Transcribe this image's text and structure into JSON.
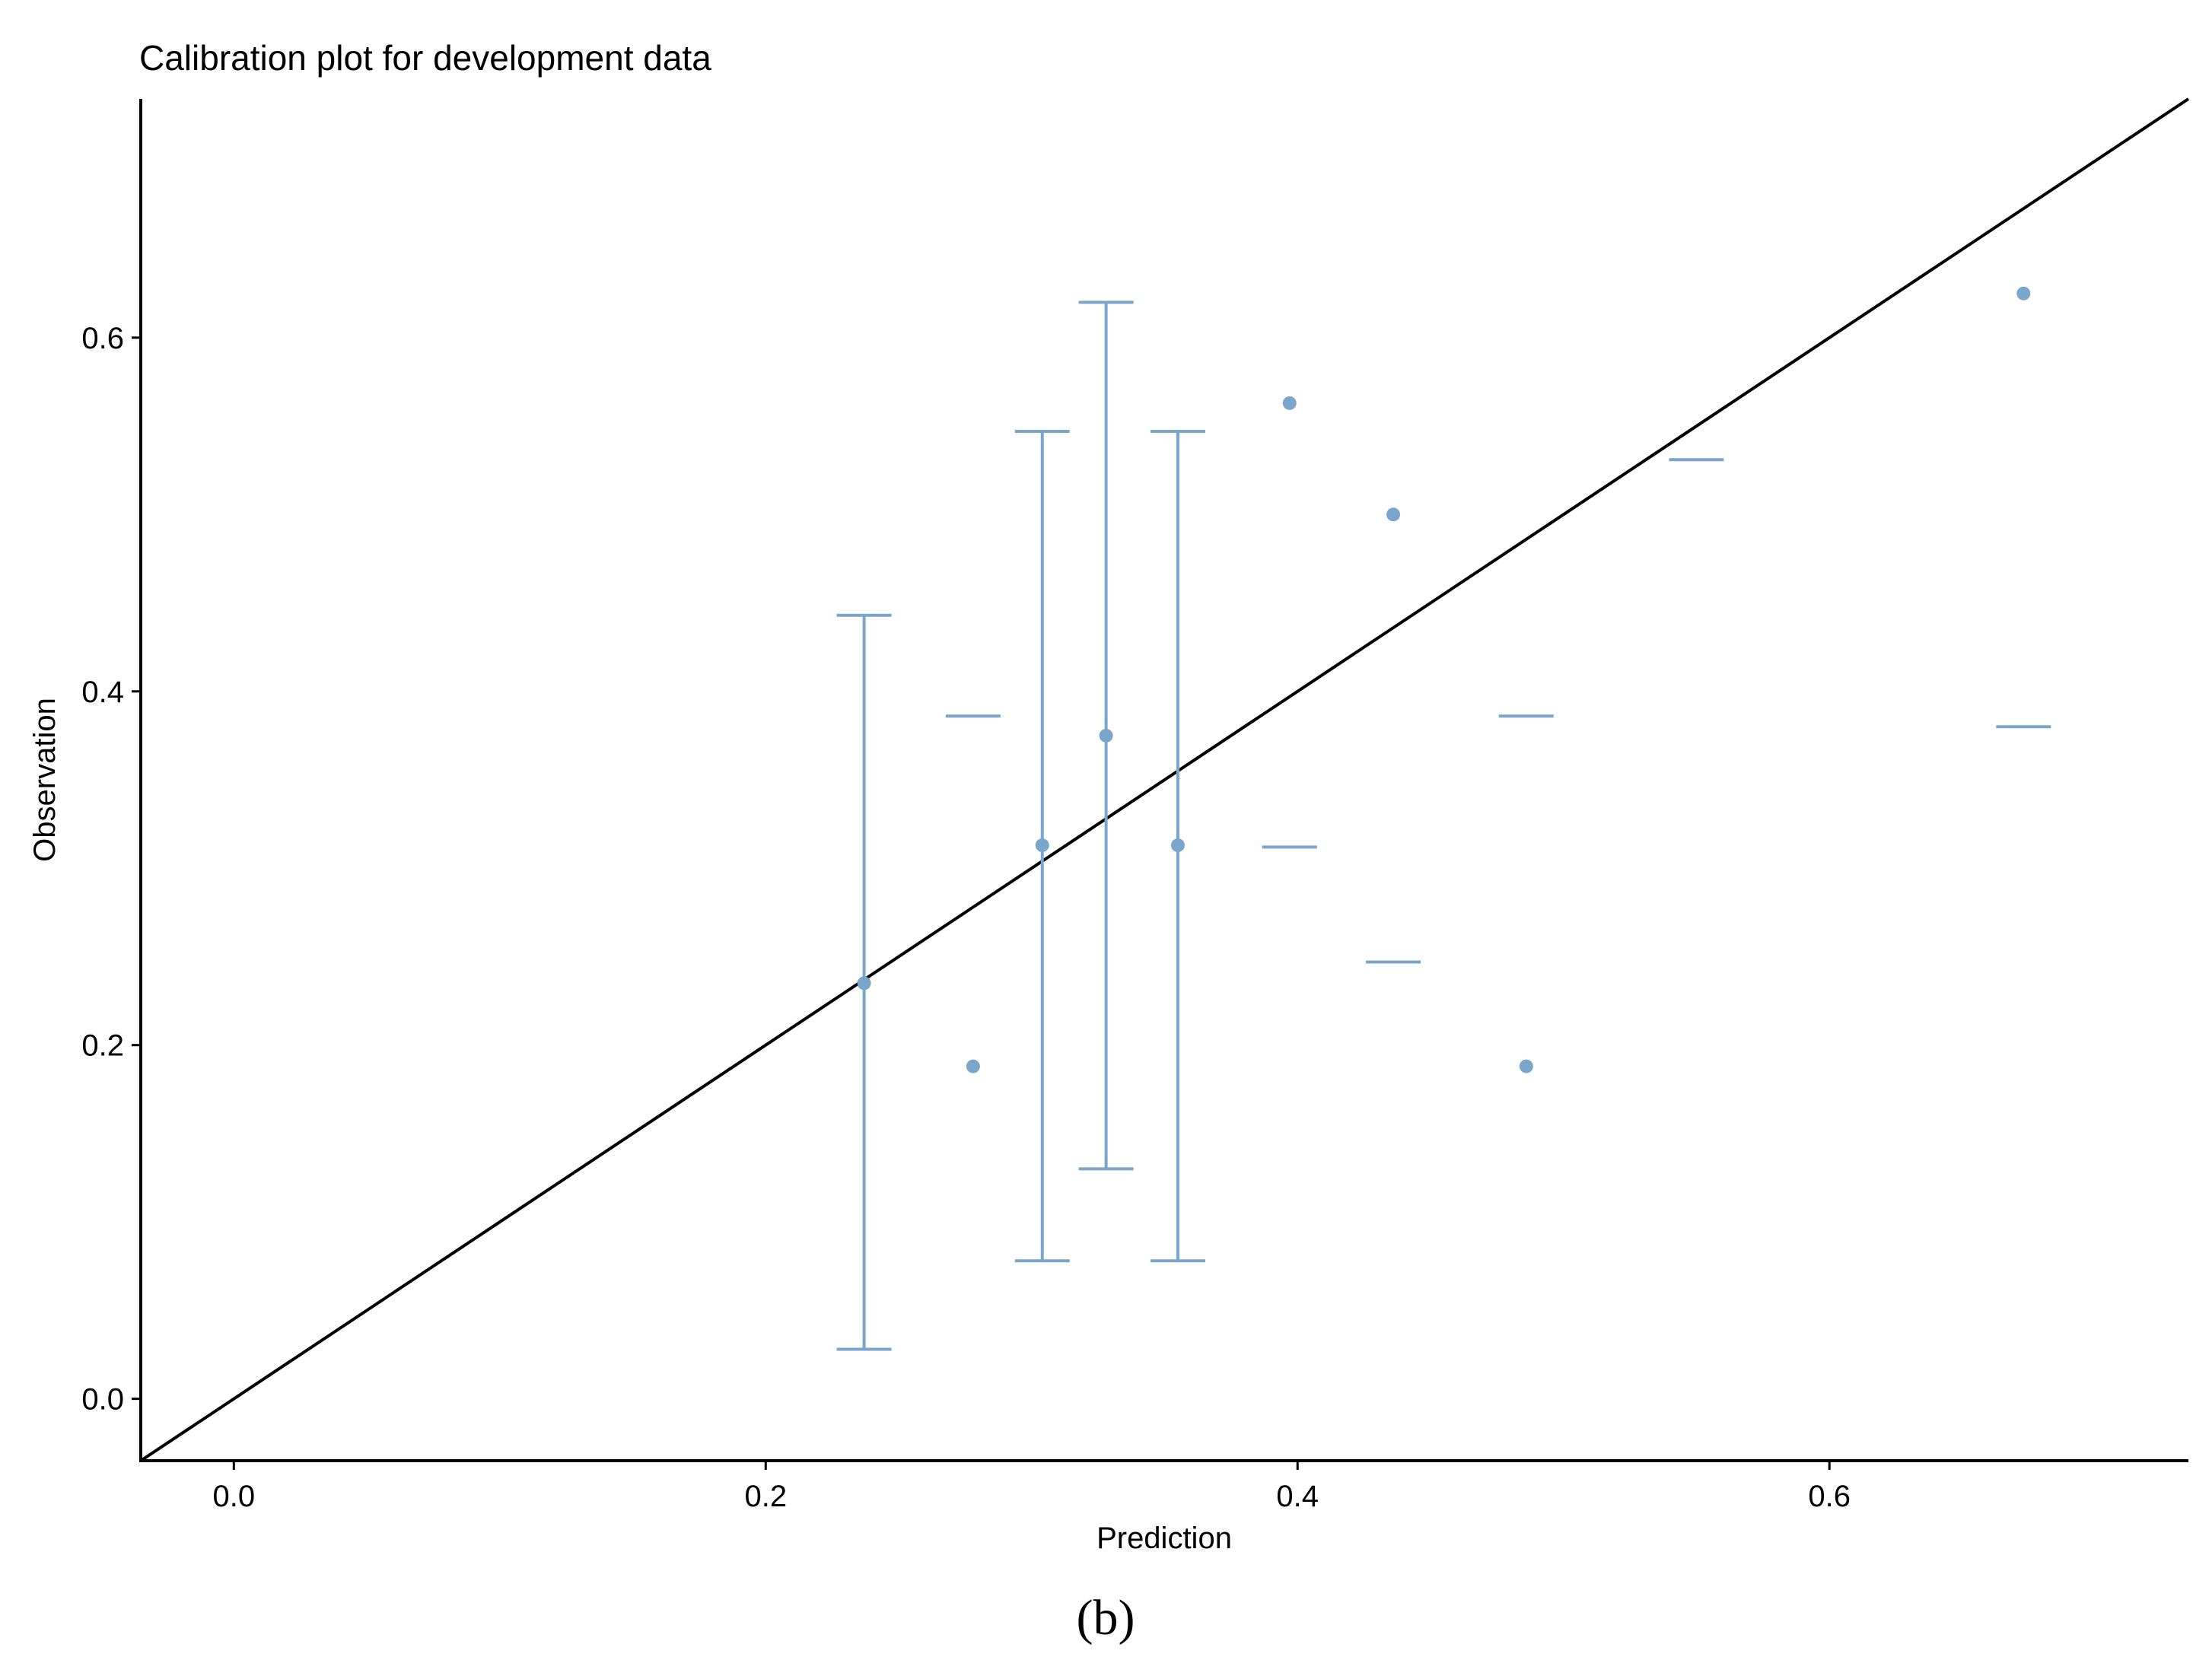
{
  "chart_data": {
    "type": "scatter",
    "title": "Calibration plot for development data",
    "xlabel": "Prediction",
    "ylabel": "Observation",
    "panel_label": "(b)",
    "xlim": [
      -0.035,
      0.735
    ],
    "ylim": [
      -0.035,
      0.735
    ],
    "x_ticks": [
      0.0,
      0.2,
      0.4,
      0.6
    ],
    "x_tick_labels": [
      "0.0",
      "0.2",
      "0.4",
      "0.6"
    ],
    "y_ticks": [
      0.0,
      0.2,
      0.4,
      0.6
    ],
    "y_tick_labels": [
      "0.0",
      "0.2",
      "0.4",
      "0.6"
    ],
    "grid": false,
    "reference_line": {
      "from": [
        -0.035,
        -0.035
      ],
      "to": [
        0.735,
        0.735
      ],
      "color": "#000000"
    },
    "point_color": "#7aa6cc",
    "points": [
      {
        "x": 0.237,
        "y": 0.235,
        "lower": 0.028,
        "upper": 0.443
      },
      {
        "x": 0.278,
        "y": 0.188,
        "lower": null,
        "upper": 0.386
      },
      {
        "x": 0.304,
        "y": 0.313,
        "lower": 0.078,
        "upper": 0.547
      },
      {
        "x": 0.328,
        "y": 0.375,
        "lower": 0.13,
        "upper": 0.62
      },
      {
        "x": 0.355,
        "y": 0.313,
        "lower": 0.078,
        "upper": 0.547
      },
      {
        "x": 0.397,
        "y": 0.563,
        "lower": null,
        "upper": 0.312
      },
      {
        "x": 0.436,
        "y": 0.5,
        "lower": null,
        "upper": 0.247
      },
      {
        "x": 0.486,
        "y": 0.188,
        "lower": null,
        "upper": 0.386
      },
      {
        "x": 0.55,
        "y": null,
        "lower": null,
        "upper": 0.531
      },
      {
        "x": 0.673,
        "y": 0.625,
        "lower": null,
        "upper": 0.38
      }
    ]
  }
}
